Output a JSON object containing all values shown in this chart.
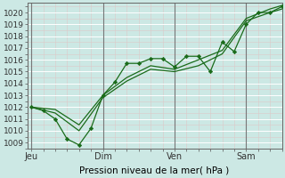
{
  "background_color": "#cce8e4",
  "grid_major_color": "#ffffff",
  "grid_minor_color": "#ddc8c8",
  "line_color": "#1a6b1a",
  "marker_color": "#1a6b1a",
  "xlabel": "Pression niveau de la mer( hPa )",
  "ylim": [
    1008.5,
    1020.8
  ],
  "yticks": [
    1009,
    1010,
    1011,
    1012,
    1013,
    1014,
    1015,
    1016,
    1017,
    1018,
    1019,
    1020
  ],
  "xtick_labels": [
    "Jeu",
    "Dim",
    "Ven",
    "Sam"
  ],
  "xtick_positions": [
    0,
    36,
    72,
    108
  ],
  "xlim": [
    -2,
    126
  ],
  "vline_color": "#777777",
  "series1_x": [
    0,
    6,
    12,
    18,
    24,
    30,
    36,
    42,
    48,
    54,
    60,
    66,
    72,
    78,
    84,
    90,
    96,
    102,
    108,
    114,
    120,
    126
  ],
  "series1_y": [
    1012.0,
    1011.7,
    1011.0,
    1009.3,
    1008.8,
    1010.2,
    1013.0,
    1014.1,
    1015.7,
    1015.7,
    1016.1,
    1016.1,
    1015.4,
    1016.3,
    1016.3,
    1015.0,
    1017.5,
    1016.7,
    1019.0,
    1020.0,
    1020.0,
    1020.5
  ],
  "series2_x": [
    0,
    12,
    24,
    36,
    48,
    60,
    72,
    84,
    96,
    108,
    120,
    126
  ],
  "series2_y": [
    1012.0,
    1011.5,
    1010.0,
    1012.8,
    1014.2,
    1015.2,
    1015.0,
    1015.5,
    1016.5,
    1019.3,
    1020.0,
    1020.3
  ],
  "series3_x": [
    0,
    12,
    24,
    36,
    48,
    60,
    72,
    84,
    96,
    108,
    120,
    126
  ],
  "series3_y": [
    1012.0,
    1011.8,
    1010.5,
    1013.0,
    1014.5,
    1015.5,
    1015.2,
    1016.0,
    1016.8,
    1019.5,
    1020.3,
    1020.6
  ]
}
